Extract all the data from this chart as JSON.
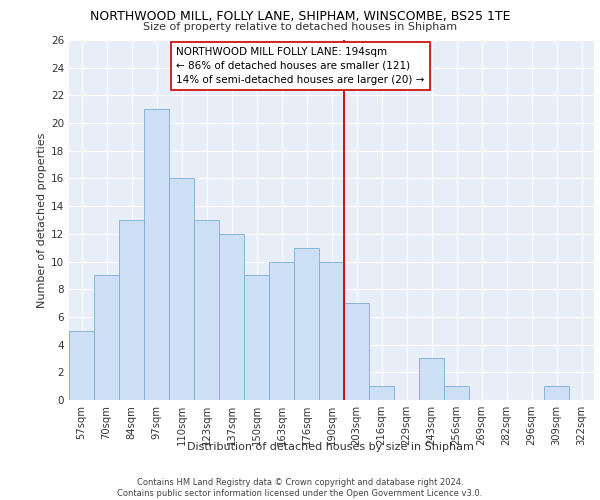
{
  "title": "NORTHWOOD MILL, FOLLY LANE, SHIPHAM, WINSCOMBE, BS25 1TE",
  "subtitle": "Size of property relative to detached houses in Shipham",
  "xlabel_bottom": "Distribution of detached houses by size in Shipham",
  "ylabel": "Number of detached properties",
  "categories": [
    "57sqm",
    "70sqm",
    "84sqm",
    "97sqm",
    "110sqm",
    "123sqm",
    "137sqm",
    "150sqm",
    "163sqm",
    "176sqm",
    "190sqm",
    "203sqm",
    "216sqm",
    "229sqm",
    "243sqm",
    "256sqm",
    "269sqm",
    "282sqm",
    "296sqm",
    "309sqm",
    "322sqm"
  ],
  "values": [
    5,
    9,
    13,
    21,
    16,
    13,
    12,
    9,
    10,
    11,
    10,
    7,
    1,
    0,
    3,
    1,
    0,
    0,
    0,
    1,
    0
  ],
  "bar_color": "#ccdff5",
  "bar_edge_color": "#7aadd4",
  "vline_x_index": 10.5,
  "vline_color": "#cc0000",
  "annotation_box_text": "NORTHWOOD MILL FOLLY LANE: 194sqm\n← 86% of detached houses are smaller (121)\n14% of semi-detached houses are larger (20) →",
  "ylim": [
    0,
    26
  ],
  "yticks": [
    0,
    2,
    4,
    6,
    8,
    10,
    12,
    14,
    16,
    18,
    20,
    22,
    24,
    26
  ],
  "bg_color": "#e8eef8",
  "grid_color": "#ffffff",
  "footer_line1": "Contains HM Land Registry data © Crown copyright and database right 2024.",
  "footer_line2": "Contains public sector information licensed under the Open Government Licence v3.0."
}
